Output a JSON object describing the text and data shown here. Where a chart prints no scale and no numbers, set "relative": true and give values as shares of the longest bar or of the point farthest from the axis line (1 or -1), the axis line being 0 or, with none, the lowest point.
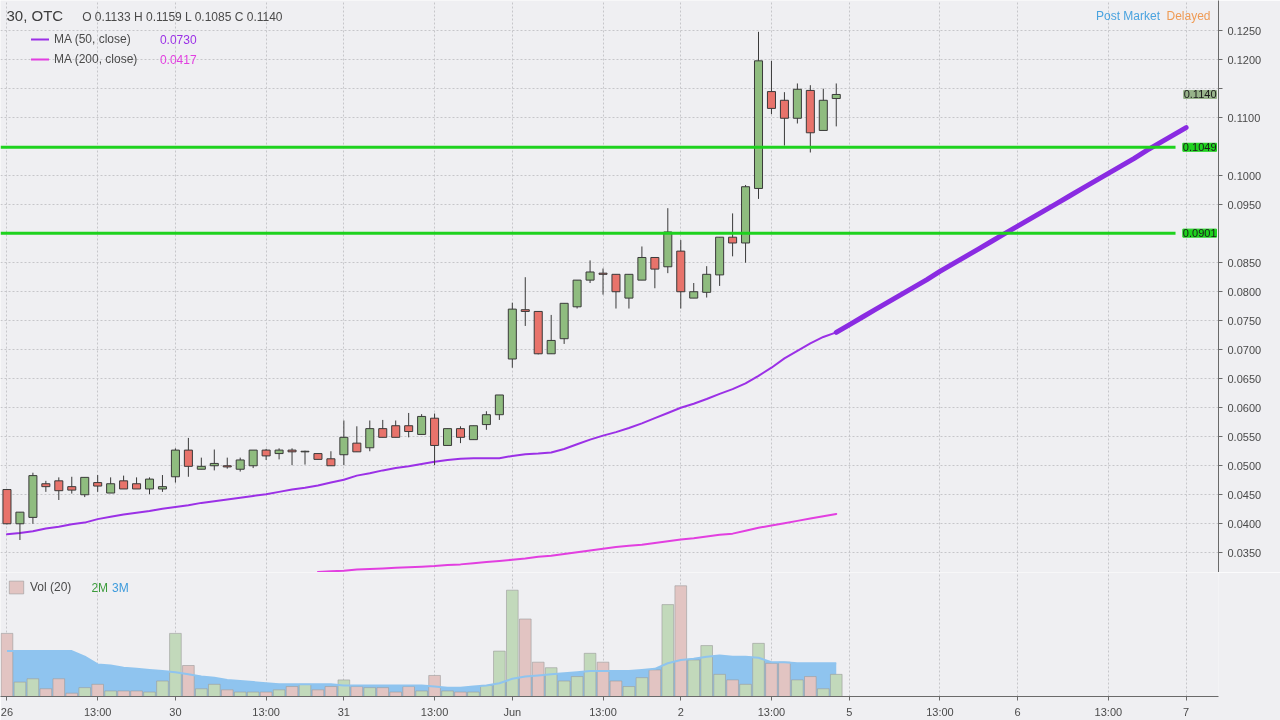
{
  "chart_data": [
    {
      "type": "candlestick",
      "title": "30, OTC",
      "categories": [
        "26",
        null,
        null,
        null,
        null,
        null,
        null,
        "13:00",
        null,
        null,
        null,
        null,
        null,
        "30",
        null,
        null,
        null,
        null,
        null,
        null,
        "13:00",
        null,
        null,
        null,
        null,
        null,
        "31",
        null,
        null,
        null,
        null,
        null,
        null,
        "13:00",
        null,
        null,
        null,
        null,
        null,
        "Jun",
        null,
        null,
        null,
        null,
        null,
        null,
        "13:00",
        null,
        null,
        null,
        null,
        null,
        "2",
        null,
        null,
        null,
        null,
        null,
        null,
        "13:00",
        null,
        null,
        null,
        null,
        null,
        "5",
        null,
        null,
        null,
        null,
        null,
        null,
        "13:00",
        null,
        null,
        null,
        null,
        null,
        "6",
        null,
        null,
        null,
        null,
        null,
        null,
        "13:00",
        null,
        null,
        null,
        null,
        null,
        "7",
        null,
        null
      ],
      "ohlc": [
        [
          0.0459,
          0.046,
          0.0399,
          0.04
        ],
        [
          0.04,
          0.042,
          0.0372,
          0.042
        ],
        [
          0.0411,
          0.0488,
          0.04,
          0.0483
        ],
        [
          0.0469,
          0.0474,
          0.0455,
          0.0464
        ],
        [
          0.0474,
          0.048,
          0.0441,
          0.0457
        ],
        [
          0.0464,
          0.0481,
          0.0452,
          0.0458
        ],
        [
          0.045,
          0.048,
          0.0446,
          0.048
        ],
        [
          0.0471,
          0.0484,
          0.0455,
          0.0465
        ],
        [
          0.0453,
          0.048,
          0.0453,
          0.0469
        ],
        [
          0.0474,
          0.0483,
          0.046,
          0.046
        ],
        [
          0.0469,
          0.048,
          0.046,
          0.046
        ],
        [
          0.046,
          0.048,
          0.0451,
          0.0477
        ],
        [
          0.046,
          0.0484,
          0.0455,
          0.0464
        ],
        [
          0.0481,
          0.053,
          0.0471,
          0.0527
        ],
        [
          0.0527,
          0.0548,
          0.0481,
          0.0499
        ],
        [
          0.0494,
          0.0514,
          0.0494,
          0.0499
        ],
        [
          0.05,
          0.0528,
          0.0492,
          0.0504
        ],
        [
          0.05,
          0.0514,
          0.0495,
          0.0498
        ],
        [
          0.0494,
          0.0514,
          0.049,
          0.051
        ],
        [
          0.05,
          0.0527,
          0.0496,
          0.0527
        ],
        [
          0.0527,
          0.0529,
          0.051,
          0.0517
        ],
        [
          0.0521,
          0.053,
          0.0511,
          0.0527
        ],
        [
          0.0527,
          0.053,
          0.0501,
          0.0524
        ],
        [
          0.0524,
          0.0526,
          0.0502,
          0.0525
        ],
        [
          0.0521,
          0.0521,
          0.0511,
          0.0511
        ],
        [
          0.0512,
          0.0525,
          0.05,
          0.05
        ],
        [
          0.0519,
          0.0578,
          0.0501,
          0.0549
        ],
        [
          0.0539,
          0.0568,
          0.0524,
          0.0524
        ],
        [
          0.0531,
          0.0578,
          0.0525,
          0.0564
        ],
        [
          0.0564,
          0.0579,
          0.0549,
          0.0549
        ],
        [
          0.0569,
          0.0578,
          0.0549,
          0.0549
        ],
        [
          0.0569,
          0.0591,
          0.0549,
          0.0559
        ],
        [
          0.0554,
          0.0589,
          0.0554,
          0.0585
        ],
        [
          0.0582,
          0.059,
          0.0501,
          0.0535
        ],
        [
          0.0535,
          0.0564,
          0.0535,
          0.0564
        ],
        [
          0.0564,
          0.0568,
          0.0539,
          0.0549
        ],
        [
          0.0545,
          0.0569,
          0.0545,
          0.0569
        ],
        [
          0.0571,
          0.0594,
          0.0562,
          0.0588
        ],
        [
          0.0588,
          0.0622,
          0.0579,
          0.0622
        ],
        [
          0.0684,
          0.0781,
          0.0669,
          0.077
        ],
        [
          0.0769,
          0.0825,
          0.0741,
          0.0766
        ],
        [
          0.0766,
          0.0766,
          0.0692,
          0.0693
        ],
        [
          0.0693,
          0.076,
          0.0693,
          0.0716
        ],
        [
          0.0719,
          0.078,
          0.071,
          0.078
        ],
        [
          0.0774,
          0.082,
          0.0771,
          0.082
        ],
        [
          0.082,
          0.0854,
          0.0815,
          0.0834
        ],
        [
          0.0832,
          0.084,
          0.0795,
          0.083
        ],
        [
          0.083,
          0.083,
          0.0771,
          0.08
        ],
        [
          0.0789,
          0.083,
          0.0771,
          0.083
        ],
        [
          0.082,
          0.0878,
          0.082,
          0.0859
        ],
        [
          0.0859,
          0.0859,
          0.0806,
          0.0839
        ],
        [
          0.0843,
          0.0944,
          0.0832,
          0.0903
        ],
        [
          0.087,
          0.0889,
          0.0771,
          0.08
        ],
        [
          0.0789,
          0.0815,
          0.0789,
          0.08
        ],
        [
          0.0799,
          0.0844,
          0.079,
          0.083
        ],
        [
          0.0829,
          0.0894,
          0.081,
          0.0894
        ],
        [
          0.0894,
          0.0935,
          0.0861,
          0.0884
        ],
        [
          0.0884,
          0.0984,
          0.085,
          0.0981
        ],
        [
          0.0978,
          0.1248,
          0.096,
          0.1198
        ],
        [
          0.1145,
          0.1198,
          0.1106,
          0.1116
        ],
        [
          0.113,
          0.1144,
          0.1052,
          0.1099
        ],
        [
          0.1099,
          0.1159,
          0.109,
          0.1149
        ],
        [
          0.1147,
          0.1156,
          0.104,
          0.1074
        ],
        [
          0.1078,
          0.115,
          0.1078,
          0.113
        ],
        [
          0.1133,
          0.1159,
          0.1085,
          0.114
        ],
        null,
        null,
        null,
        null,
        null,
        null,
        null,
        null,
        null,
        null,
        null,
        null,
        null,
        null,
        null,
        null,
        null,
        null,
        null,
        null,
        null,
        null,
        null,
        null,
        null,
        null,
        null,
        null,
        null
      ],
      "colors": [
        "#e8736b",
        "#8fbc7f",
        "#8fbc7f",
        "#e8736b",
        "#e8736b",
        "#e8736b",
        "#8fbc7f",
        "#e8736b",
        "#8fbc7f",
        "#e8736b",
        "#e8736b",
        "#8fbc7f",
        "#8fbc7f",
        "#8fbc7f",
        "#e8736b",
        "#8fbc7f",
        "#8fbc7f",
        "#e8736b",
        "#8fbc7f",
        "#8fbc7f",
        "#e8736b",
        "#8fbc7f",
        "#e8736b",
        "#8fbc7f",
        "#e8736b",
        "#e8736b",
        "#8fbc7f",
        "#e8736b",
        "#8fbc7f",
        "#e8736b",
        "#e8736b",
        "#e8736b",
        "#8fbc7f",
        "#e8736b",
        "#8fbc7f",
        "#e8736b",
        "#8fbc7f",
        "#8fbc7f",
        "#8fbc7f",
        "#8fbc7f",
        "#e8736b",
        "#e8736b",
        "#8fbc7f",
        "#8fbc7f",
        "#8fbc7f",
        "#8fbc7f",
        "#e8736b",
        "#e8736b",
        "#8fbc7f",
        "#8fbc7f",
        "#e8736b",
        "#8fbc7f",
        "#e8736b",
        "#8fbc7f",
        "#8fbc7f",
        "#8fbc7f",
        "#e8736b",
        "#8fbc7f",
        "#8fbc7f",
        "#e8736b",
        "#e8736b",
        "#8fbc7f",
        "#e8736b",
        "#8fbc7f",
        "#8fbc7f",
        null,
        null,
        null,
        null,
        null,
        null,
        null,
        null,
        null,
        null,
        null,
        null,
        null,
        null,
        null,
        null,
        null,
        null,
        null,
        null,
        null,
        null,
        null,
        null,
        null,
        null,
        null,
        null,
        null
      ],
      "series": [
        {
          "name": "MA (50, close)",
          "type": "line",
          "color": "#9b30e6",
          "values": [
            0.0382,
            0.0384,
            0.0387,
            0.0392,
            0.0395,
            0.0399,
            0.0402,
            0.0408,
            0.0412,
            0.0416,
            0.0419,
            0.0422,
            0.0426,
            0.0429,
            0.0432,
            0.0436,
            0.0439,
            0.0442,
            0.0445,
            0.0448,
            0.0451,
            0.0455,
            0.0459,
            0.0462,
            0.0466,
            0.0471,
            0.0476,
            0.0483,
            0.0487,
            0.0492,
            0.0496,
            0.0499,
            0.0503,
            0.0507,
            0.051,
            0.0512,
            0.0513,
            0.0513,
            0.0513,
            0.0517,
            0.052,
            0.0521,
            0.0523,
            0.0529,
            0.0537,
            0.0545,
            0.0552,
            0.0558,
            0.0565,
            0.0573,
            0.0582,
            0.0591,
            0.06,
            0.0607,
            0.0615,
            0.0624,
            0.0632,
            0.0642,
            0.0655,
            0.0669,
            0.0685,
            0.0698,
            0.0711,
            0.0722,
            0.073,
            null,
            null,
            null,
            null,
            null,
            null,
            null,
            null,
            null,
            null,
            null,
            null,
            null,
            null,
            null,
            null,
            null,
            null,
            null,
            null,
            null,
            null,
            null,
            null,
            null,
            null,
            null,
            null,
            null
          ]
        },
        {
          "name": "MA (200, close)",
          "type": "line",
          "color": "#e23fe0",
          "values": [
            null,
            null,
            null,
            null,
            null,
            null,
            null,
            null,
            null,
            null,
            null,
            null,
            null,
            null,
            null,
            null,
            null,
            null,
            null,
            null,
            null,
            null,
            null,
            null,
            0.0317,
            0.0318,
            0.0319,
            0.0321,
            0.0322,
            0.0323,
            0.0324,
            0.0325,
            0.0326,
            0.0327,
            0.0329,
            0.033,
            0.0332,
            0.0334,
            0.0336,
            0.0338,
            0.034,
            0.0343,
            0.0345,
            0.0348,
            0.0351,
            0.0354,
            0.0357,
            0.036,
            0.0362,
            0.0364,
            0.0367,
            0.037,
            0.0373,
            0.0375,
            0.0378,
            0.0381,
            0.0383,
            0.0388,
            0.0393,
            0.0397,
            0.0401,
            0.0405,
            0.0409,
            0.0413,
            0.0417,
            null,
            null,
            null,
            null,
            null,
            null,
            null,
            null,
            null,
            null,
            null,
            null,
            null,
            null,
            null,
            null,
            null,
            null,
            null,
            null,
            null,
            null,
            null,
            null,
            null,
            null,
            null,
            null,
            null
          ]
        },
        {
          "type": "line",
          "color": "#8a2be2",
          "values": [
            null,
            null,
            null,
            null,
            null,
            null,
            null,
            null,
            null,
            null,
            null,
            null,
            null,
            null,
            null,
            null,
            null,
            null,
            null,
            null,
            null,
            null,
            null,
            null,
            null,
            null,
            null,
            null,
            null,
            null,
            null,
            null,
            null,
            null,
            null,
            null,
            null,
            null,
            null,
            null,
            null,
            null,
            null,
            null,
            null,
            null,
            null,
            null,
            null,
            null,
            null,
            null,
            null,
            null,
            null,
            null,
            null,
            null,
            null,
            null,
            null,
            null,
            null,
            null,
            0.073,
            0.0743,
            0.0756,
            0.0769,
            0.0782,
            0.0795,
            0.0808,
            0.0821,
            0.0835,
            0.0848,
            0.0861,
            0.0874,
            0.0887,
            0.09,
            0.0913,
            0.0926,
            0.0939,
            0.0952,
            0.0965,
            0.0978,
            0.0991,
            0.1004,
            0.1017,
            0.103,
            0.1044,
            0.1057,
            0.107,
            0.1083,
            null,
            null
          ]
        }
      ],
      "ylim": [
        0.0316,
        0.1302
      ],
      "yticks": [
        {
          "value": 0.035,
          "label": "0.0350"
        },
        {
          "value": 0.04,
          "label": "0.0400"
        },
        {
          "value": 0.045,
          "label": "0.0450"
        },
        {
          "value": 0.05,
          "label": "0.0500"
        },
        {
          "value": 0.055,
          "label": "0.0550"
        },
        {
          "value": 0.06,
          "label": "0.0600"
        },
        {
          "value": 0.065,
          "label": "0.0650"
        },
        {
          "value": 0.07,
          "label": "0.0700"
        },
        {
          "value": 0.075,
          "label": "0.0750"
        },
        {
          "value": 0.08,
          "label": "0.0800"
        },
        {
          "value": 0.085,
          "label": "0.0850"
        },
        {
          "value": 0.095,
          "label": "0.0950"
        },
        {
          "value": 0.1,
          "label": "0.1000"
        },
        {
          "value": 0.11,
          "label": "0.1100"
        },
        {
          "value": 0.115,
          "label": null
        },
        {
          "value": 0.12,
          "label": "0.1200"
        },
        {
          "value": 0.125,
          "label": "0.1250"
        }
      ],
      "ref_lines": [
        {
          "axis": "y",
          "value": 0.1049,
          "label": "0.1049",
          "color": "#1ed21e"
        },
        {
          "axis": "y",
          "value": 0.0901,
          "label": "0.0901",
          "color": "#1ed21e"
        }
      ],
      "annotations": [
        "O 0.1133 H 0.1159 L 0.1085 C 0.1140",
        "0.0730",
        "0.0417",
        "0.1140",
        "Post Market",
        "Delayed"
      ],
      "grid": true,
      "legend": "top left",
      "tick_labels": "y"
    },
    {
      "type": "bar",
      "relative": true,
      "categories": [
        "26",
        null,
        null,
        null,
        null,
        null,
        null,
        "13:00",
        null,
        null,
        null,
        null,
        null,
        "30",
        null,
        null,
        null,
        null,
        null,
        null,
        "13:00",
        null,
        null,
        null,
        null,
        null,
        "31",
        null,
        null,
        null,
        null,
        null,
        null,
        "13:00",
        null,
        null,
        null,
        null,
        null,
        "Jun",
        null,
        null,
        null,
        null,
        null,
        null,
        "13:00",
        null,
        null,
        null,
        null,
        null,
        "2",
        null,
        null,
        null,
        null,
        null,
        null,
        "13:00",
        null,
        null,
        null,
        null,
        null,
        "5",
        null,
        null,
        null,
        null,
        null,
        null,
        "13:00",
        null,
        null,
        null,
        null,
        null,
        "6",
        null,
        null,
        null,
        null,
        null,
        null,
        "13:00",
        null,
        null,
        null,
        null,
        null,
        "7",
        null,
        null
      ],
      "series": [
        {
          "name": "Vol (20)",
          "type": "bar",
          "values": [
            0.57,
            0.13,
            0.16,
            0.07,
            0.16,
            0.03,
            0.08,
            0.11,
            0.05,
            0.05,
            0.05,
            0.04,
            0.14,
            0.57,
            0.28,
            0.07,
            0.11,
            0.06,
            0.04,
            0.04,
            0.04,
            0.06,
            0.09,
            0.11,
            0.06,
            0.09,
            0.15,
            0.09,
            0.08,
            0.08,
            0.04,
            0.09,
            0.05,
            0.19,
            0.05,
            0.04,
            0.04,
            0.1,
            0.41,
            0.96,
            0.7,
            0.31,
            0.26,
            0.14,
            0.18,
            0.39,
            0.31,
            0.14,
            0.09,
            0.17,
            0.24,
            0.83,
            1.0,
            0.33,
            0.46,
            0.2,
            0.15,
            0.11,
            0.48,
            0.3,
            0.31,
            0.15,
            0.18,
            0.07,
            0.2,
            null,
            null,
            null,
            null,
            null,
            null,
            null,
            null,
            null,
            null,
            null,
            null,
            null,
            null,
            null,
            null,
            null,
            null,
            null,
            null,
            null,
            null,
            null,
            null,
            null,
            null,
            null,
            null,
            null
          ],
          "colors": [
            "#e2c4c2",
            "#c2d9bb",
            "#c2d9bb",
            "#e2c4c2",
            "#e2c4c2",
            "#e2c4c2",
            "#c2d9bb",
            "#e2c4c2",
            "#c2d9bb",
            "#e2c4c2",
            "#e2c4c2",
            "#c2d9bb",
            "#c2d9bb",
            "#c2d9bb",
            "#e2c4c2",
            "#c2d9bb",
            "#c2d9bb",
            "#e2c4c2",
            "#c2d9bb",
            "#c2d9bb",
            "#e2c4c2",
            "#c2d9bb",
            "#e2c4c2",
            "#c2d9bb",
            "#e2c4c2",
            "#e2c4c2",
            "#c2d9bb",
            "#e2c4c2",
            "#c2d9bb",
            "#e2c4c2",
            "#e2c4c2",
            "#e2c4c2",
            "#c2d9bb",
            "#e2c4c2",
            "#c2d9bb",
            "#e2c4c2",
            "#c2d9bb",
            "#c2d9bb",
            "#c2d9bb",
            "#c2d9bb",
            "#e2c4c2",
            "#e2c4c2",
            "#c2d9bb",
            "#c2d9bb",
            "#c2d9bb",
            "#c2d9bb",
            "#e2c4c2",
            "#e2c4c2",
            "#c2d9bb",
            "#c2d9bb",
            "#e2c4c2",
            "#c2d9bb",
            "#e2c4c2",
            "#c2d9bb",
            "#c2d9bb",
            "#c2d9bb",
            "#e2c4c2",
            "#c2d9bb",
            "#c2d9bb",
            "#e2c4c2",
            "#e2c4c2",
            "#c2d9bb",
            "#e2c4c2",
            "#c2d9bb",
            "#c2d9bb",
            null,
            null,
            null,
            null,
            null,
            null,
            null,
            null,
            null,
            null,
            null,
            null,
            null,
            null,
            null,
            null,
            null,
            null,
            null,
            null,
            null,
            null,
            null,
            null,
            null,
            null,
            null,
            null,
            null
          ]
        },
        {
          "type": "area",
          "color": "#8fc4ef",
          "values": [
            0.41,
            0.41,
            0.41,
            0.41,
            0.41,
            0.41,
            0.36,
            0.29,
            0.28,
            0.26,
            0.25,
            0.24,
            0.23,
            0.22,
            0.2,
            0.18,
            0.17,
            0.15,
            0.14,
            0.13,
            0.12,
            0.11,
            0.11,
            0.11,
            0.11,
            0.11,
            0.1,
            0.1,
            0.1,
            0.1,
            0.1,
            0.1,
            0.1,
            0.09,
            0.08,
            0.08,
            0.09,
            0.1,
            0.12,
            0.16,
            0.18,
            0.19,
            0.2,
            0.21,
            0.22,
            0.23,
            0.23,
            0.23,
            0.23,
            0.24,
            0.25,
            0.3,
            0.33,
            0.34,
            0.36,
            0.37,
            0.36,
            0.36,
            0.35,
            0.31,
            0.31,
            0.3,
            0.3,
            0.3,
            0.3,
            null,
            null,
            null,
            null,
            null,
            null,
            null,
            null,
            null,
            null,
            null,
            null,
            null,
            null,
            null,
            null,
            null,
            null,
            null,
            null,
            null,
            null,
            null,
            null,
            null,
            null,
            null,
            null,
            null
          ]
        }
      ],
      "annotations": [
        "2M",
        "3M"
      ],
      "grid": "x",
      "legend": "top left",
      "tick_labels": "x"
    }
  ]
}
